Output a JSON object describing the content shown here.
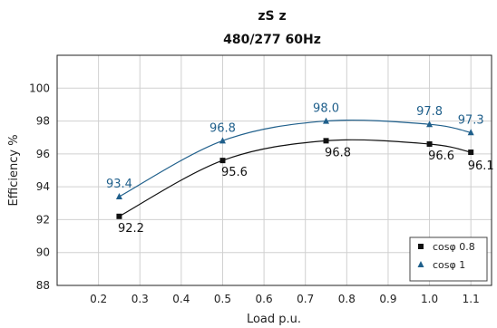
{
  "chart_data": {
    "type": "line",
    "title": "zS  z",
    "subtitle": "480/277 60Hz",
    "xlabel": "Load p.u.",
    "ylabel": "Efficiency %",
    "xlim": [
      0.1,
      1.15
    ],
    "ylim": [
      88,
      102
    ],
    "x_ticks": [
      0.2,
      0.3,
      0.4,
      0.5,
      0.6,
      0.7,
      0.8,
      0.9,
      1.0,
      1.1
    ],
    "x_tick_labels": [
      "0.2",
      "0.3",
      "0.4",
      "0.5",
      "0.6",
      "0.7",
      "0.8",
      "0.9",
      "1.0",
      "1.1"
    ],
    "y_ticks": [
      88,
      90,
      92,
      94,
      96,
      98,
      100
    ],
    "y_tick_labels": [
      "88",
      "90",
      "92",
      "94",
      "96",
      "98",
      "100"
    ],
    "grid": true,
    "legend_position": "bottom-right",
    "series": [
      {
        "name": "cosφ 0.8",
        "marker": "square",
        "color": "#111111",
        "x": [
          0.25,
          0.5,
          0.75,
          1.0,
          1.1
        ],
        "values": [
          92.2,
          95.6,
          96.8,
          96.6,
          96.1
        ],
        "labels": [
          "92.2",
          "95.6",
          "96.8",
          "96.6",
          "96.1"
        ]
      },
      {
        "name": "cosφ 1",
        "marker": "triangle",
        "color": "#1f5f8b",
        "x": [
          0.25,
          0.5,
          0.75,
          1.0,
          1.1
        ],
        "values": [
          93.4,
          96.8,
          98.0,
          97.8,
          97.3
        ],
        "labels": [
          "93.4",
          "96.8",
          "98.0",
          "97.8",
          "97.3"
        ]
      }
    ]
  }
}
